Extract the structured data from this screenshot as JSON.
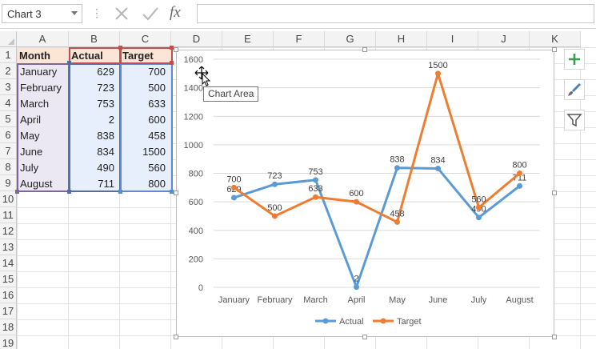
{
  "formula_bar": {
    "name_box": "Chart 3",
    "fx_label": "fx",
    "formula_value": ""
  },
  "columns": [
    "A",
    "B",
    "C",
    "D",
    "E",
    "F",
    "G",
    "H",
    "I",
    "J",
    "K"
  ],
  "rows": [
    "1",
    "2",
    "3",
    "4",
    "5",
    "6",
    "7",
    "8",
    "9",
    "10",
    "11",
    "12",
    "13",
    "14",
    "15",
    "16",
    "17",
    "18",
    "19"
  ],
  "table": {
    "headers": [
      "Month",
      "Actual",
      "Target"
    ],
    "rows": [
      {
        "month": "January",
        "actual": "629",
        "target": "700"
      },
      {
        "month": "February",
        "actual": "723",
        "target": "500"
      },
      {
        "month": "March",
        "actual": "753",
        "target": "633"
      },
      {
        "month": "April",
        "actual": "2",
        "target": "600"
      },
      {
        "month": "May",
        "actual": "838",
        "target": "458"
      },
      {
        "month": "June",
        "actual": "834",
        "target": "1500"
      },
      {
        "month": "July",
        "actual": "490",
        "target": "560"
      },
      {
        "month": "August",
        "actual": "711",
        "target": "800"
      }
    ]
  },
  "selection_colors": {
    "month": "#8064a2",
    "actual": "#4f6fa6",
    "target": "#5b8bd0",
    "header": "#c0504d"
  },
  "chart_data": {
    "type": "line",
    "categories": [
      "January",
      "February",
      "March",
      "April",
      "May",
      "June",
      "July",
      "August"
    ],
    "series": [
      {
        "name": "Actual",
        "color": "#5b9bd5",
        "values": [
          629,
          723,
          753,
          2,
          838,
          834,
          490,
          711
        ]
      },
      {
        "name": "Target",
        "color": "#ed7d31",
        "values": [
          700,
          500,
          633,
          600,
          458,
          1500,
          560,
          800
        ]
      }
    ],
    "ylim": [
      0,
      1600
    ],
    "yticks": [
      0,
      200,
      400,
      600,
      800,
      1000,
      1200,
      1400,
      1600
    ],
    "grid": true,
    "legend": "bottom",
    "data_labels": true
  },
  "tooltip": "Chart Area",
  "side_buttons": {
    "elements": "plus-icon",
    "styles": "brush-icon",
    "filters": "filter-icon"
  }
}
